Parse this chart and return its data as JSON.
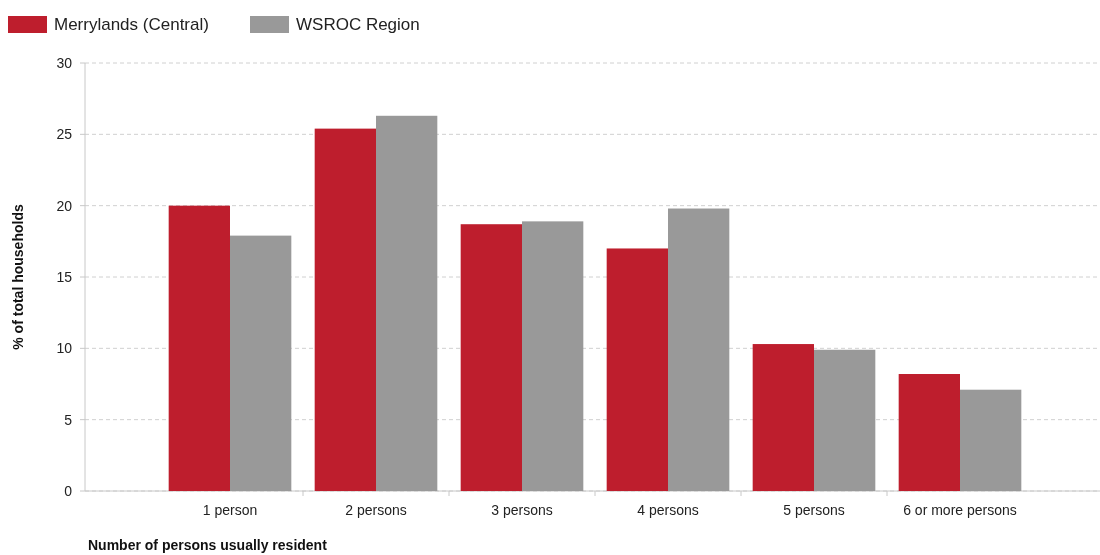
{
  "chart_data": {
    "type": "bar",
    "xlabel": "Number of persons usually resident",
    "ylabel": "% of total households",
    "categories": [
      "1 person",
      "2 persons",
      "3 persons",
      "4 persons",
      "5 persons",
      "6 or more persons"
    ],
    "series": [
      {
        "name": "Merrylands (Central)",
        "color": "#be1e2d",
        "values": [
          20.0,
          25.4,
          18.7,
          17.0,
          10.3,
          8.2
        ]
      },
      {
        "name": "WSROC Region",
        "color": "#999999",
        "values": [
          17.9,
          26.3,
          18.9,
          19.8,
          9.9,
          7.1
        ]
      }
    ],
    "ylim": [
      0,
      30
    ],
    "yticks": [
      0,
      5,
      10,
      15,
      20,
      25,
      30
    ],
    "grid": "y",
    "legend": "top left"
  }
}
